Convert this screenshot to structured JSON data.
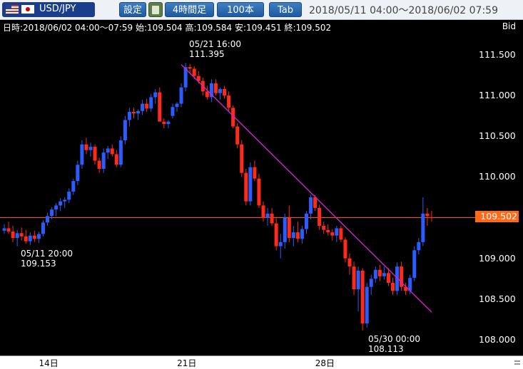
{
  "toolbar": {
    "symbol": "USD/JPY",
    "settings_label": "設定",
    "calculator_icon": "calculator-icon",
    "interval_label": "4時間足",
    "count_label": "100本",
    "tab_label": "Tab",
    "range": "2018/05/11 04:00～2018/06/02 07:59"
  },
  "info": {
    "text": "日時:2018/06/02 04:00～07:59 始:109.504 高:109.584 安:109.451 終:109.502",
    "price_type": "Bid"
  },
  "annotations": {
    "high_time": "05/21 16:00",
    "high_value": "111.395",
    "mid_low_time": "05/11 20:00",
    "mid_low_value": "109.153",
    "low_time": "05/30 00:00",
    "low_value": "108.113"
  },
  "current_price": "109.502",
  "colors": {
    "up": "#2b5cff",
    "down": "#ff2a1a",
    "trendline": "#d020d0",
    "price_line": "#ff6a1a"
  },
  "chart_data": {
    "type": "candlestick",
    "y_ticks": [
      "111.500",
      "111.000",
      "110.500",
      "110.000",
      "109.000",
      "108.500",
      "108.000"
    ],
    "y_tick_values": [
      111.5,
      111.0,
      110.5,
      110.0,
      109.0,
      108.5,
      108.0
    ],
    "x_labels": [
      "14日",
      "21日",
      "28日"
    ],
    "x_label_index": [
      10,
      42,
      74
    ],
    "candles": [
      [
        109.34,
        109.42,
        109.3,
        109.37
      ],
      [
        109.37,
        109.45,
        109.3,
        109.33
      ],
      [
        109.33,
        109.4,
        109.2,
        109.25
      ],
      [
        109.25,
        109.35,
        109.15,
        109.31
      ],
      [
        109.31,
        109.38,
        109.22,
        109.27
      ],
      [
        109.27,
        109.35,
        109.18,
        109.21
      ],
      [
        109.21,
        109.32,
        109.16,
        109.28
      ],
      [
        109.28,
        109.34,
        109.2,
        109.24
      ],
      [
        109.24,
        109.33,
        109.19,
        109.3
      ],
      [
        109.3,
        109.47,
        109.27,
        109.44
      ],
      [
        109.44,
        109.56,
        109.4,
        109.52
      ],
      [
        109.52,
        109.63,
        109.48,
        109.6
      ],
      [
        109.6,
        109.68,
        109.52,
        109.65
      ],
      [
        109.65,
        109.74,
        109.58,
        109.7
      ],
      [
        109.7,
        109.75,
        109.62,
        109.72
      ],
      [
        109.72,
        109.86,
        109.68,
        109.82
      ],
      [
        109.82,
        109.98,
        109.78,
        109.95
      ],
      [
        109.95,
        110.2,
        109.9,
        110.15
      ],
      [
        110.15,
        110.45,
        110.1,
        110.4
      ],
      [
        110.4,
        110.48,
        110.28,
        110.33
      ],
      [
        110.33,
        110.42,
        110.25,
        110.37
      ],
      [
        110.37,
        110.4,
        110.15,
        110.2
      ],
      [
        110.2,
        110.24,
        110.05,
        110.1
      ],
      [
        110.1,
        110.35,
        110.05,
        110.3
      ],
      [
        110.3,
        110.38,
        110.22,
        110.35
      ],
      [
        110.35,
        110.4,
        110.25,
        110.28
      ],
      [
        110.28,
        110.33,
        110.12,
        110.15
      ],
      [
        110.15,
        110.5,
        110.12,
        110.45
      ],
      [
        110.45,
        110.75,
        110.4,
        110.7
      ],
      [
        110.7,
        110.85,
        110.62,
        110.8
      ],
      [
        110.8,
        110.85,
        110.72,
        110.78
      ],
      [
        110.78,
        110.83,
        110.7,
        110.81
      ],
      [
        110.81,
        110.95,
        110.76,
        110.9
      ],
      [
        110.9,
        110.96,
        110.8,
        110.84
      ],
      [
        110.84,
        111.02,
        110.8,
        110.98
      ],
      [
        110.98,
        111.08,
        110.9,
        111.04
      ],
      [
        111.04,
        111.1,
        110.7,
        110.68
      ],
      [
        110.68,
        110.72,
        110.6,
        110.65
      ],
      [
        110.65,
        110.7,
        110.6,
        110.68
      ],
      [
        110.75,
        110.9,
        110.72,
        110.86
      ],
      [
        110.86,
        110.92,
        110.8,
        110.9
      ],
      [
        110.9,
        111.15,
        110.86,
        111.1
      ],
      [
        111.1,
        111.4,
        111.05,
        111.35
      ],
      [
        111.35,
        111.39,
        111.28,
        111.33
      ],
      [
        111.33,
        111.36,
        111.2,
        111.24
      ],
      [
        111.24,
        111.3,
        111.15,
        111.18
      ],
      [
        111.18,
        111.22,
        111.0,
        111.05
      ],
      [
        111.05,
        111.12,
        110.95,
        110.98
      ],
      [
        110.98,
        111.2,
        110.92,
        111.15
      ],
      [
        111.15,
        111.2,
        111.0,
        111.03
      ],
      [
        111.03,
        111.1,
        110.95,
        111.08
      ],
      [
        111.08,
        111.12,
        110.96,
        111.0
      ],
      [
        111.0,
        111.05,
        110.8,
        110.85
      ],
      [
        110.85,
        110.88,
        110.6,
        110.62
      ],
      [
        110.62,
        110.66,
        110.35,
        110.4
      ],
      [
        110.4,
        110.45,
        110.0,
        110.05
      ],
      [
        110.05,
        110.1,
        109.65,
        109.7
      ],
      [
        109.7,
        110.18,
        109.65,
        110.12
      ],
      [
        110.12,
        110.2,
        109.95,
        109.98
      ],
      [
        109.98,
        110.04,
        109.62,
        109.65
      ],
      [
        109.65,
        109.7,
        109.45,
        109.5
      ],
      [
        109.5,
        109.62,
        109.4,
        109.55
      ],
      [
        109.55,
        109.62,
        109.4,
        109.43
      ],
      [
        109.43,
        109.5,
        109.1,
        109.15
      ],
      [
        109.15,
        109.3,
        109.0,
        109.2
      ],
      [
        109.2,
        109.55,
        109.12,
        109.5
      ],
      [
        109.5,
        109.65,
        109.2,
        109.25
      ],
      [
        109.25,
        109.4,
        109.15,
        109.32
      ],
      [
        109.32,
        109.45,
        109.2,
        109.24
      ],
      [
        109.24,
        109.4,
        109.18,
        109.36
      ],
      [
        109.36,
        109.58,
        109.3,
        109.55
      ],
      [
        109.55,
        109.78,
        109.48,
        109.75
      ],
      [
        109.75,
        109.78,
        109.58,
        109.62
      ],
      [
        109.62,
        109.66,
        109.35,
        109.4
      ],
      [
        109.4,
        109.45,
        109.3,
        109.35
      ],
      [
        109.35,
        109.42,
        109.28,
        109.32
      ],
      [
        109.32,
        109.36,
        109.22,
        109.28
      ],
      [
        109.28,
        109.4,
        109.2,
        109.37
      ],
      [
        109.37,
        109.4,
        109.2,
        109.23
      ],
      [
        109.23,
        109.26,
        108.95,
        109.0
      ],
      [
        109.0,
        109.06,
        108.8,
        108.9
      ],
      [
        108.9,
        108.96,
        108.55,
        108.62
      ],
      [
        108.62,
        108.9,
        108.35,
        108.85
      ],
      [
        108.85,
        108.88,
        108.113,
        108.2
      ],
      [
        108.2,
        108.7,
        108.15,
        108.65
      ],
      [
        108.65,
        108.8,
        108.55,
        108.75
      ],
      [
        108.75,
        108.9,
        108.7,
        108.86
      ],
      [
        108.86,
        108.92,
        108.72,
        108.78
      ],
      [
        108.78,
        108.9,
        108.74,
        108.82
      ],
      [
        108.82,
        108.88,
        108.66,
        108.7
      ],
      [
        108.7,
        108.76,
        108.55,
        108.6
      ],
      [
        108.6,
        108.95,
        108.55,
        108.9
      ],
      [
        108.9,
        108.96,
        108.6,
        108.65
      ],
      [
        108.65,
        108.7,
        108.55,
        108.6
      ],
      [
        108.6,
        108.8,
        108.56,
        108.76
      ],
      [
        108.76,
        109.15,
        108.72,
        109.1
      ],
      [
        109.1,
        109.25,
        109.05,
        109.2
      ],
      [
        109.2,
        109.75,
        109.15,
        109.55
      ],
      [
        109.55,
        109.62,
        109.4,
        109.52
      ],
      [
        109.504,
        109.584,
        109.451,
        109.502
      ]
    ],
    "trendline": [
      [
        41,
        111.38
      ],
      [
        99,
        108.34
      ]
    ],
    "ylim": [
      107.98,
      111.76
    ]
  }
}
